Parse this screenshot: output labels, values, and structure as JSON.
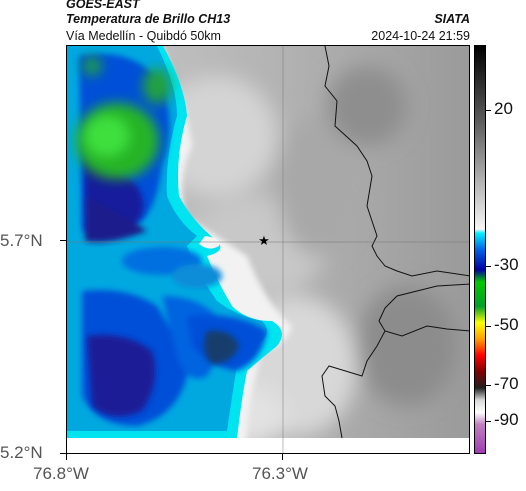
{
  "header": {
    "source": "GOES-EAST",
    "product": "Temperatura de Brillo CH13",
    "route": "Vía Medellín - Quibdó 50km",
    "org": "SIATA",
    "datetime": "2024-10-24 21:59"
  },
  "axes": {
    "lat_labels": [
      "5.7°N",
      "5.2°N"
    ],
    "lon_labels": [
      "76.8°W",
      "76.3°W"
    ]
  },
  "colorbar": {
    "labels": [
      "20",
      "-30",
      "-50",
      "-70",
      "-90"
    ]
  },
  "colors": {
    "frame": "#000000",
    "ocean_edge": "#ffffff"
  }
}
